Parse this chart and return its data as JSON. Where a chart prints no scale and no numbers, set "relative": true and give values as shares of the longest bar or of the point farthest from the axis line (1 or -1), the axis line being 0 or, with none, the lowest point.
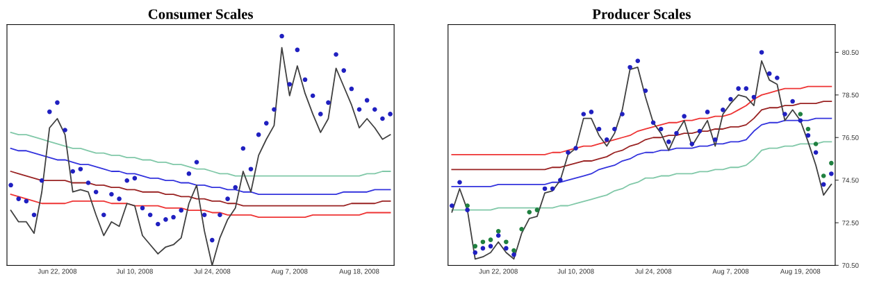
{
  "chart_data": [
    {
      "type": "line",
      "title": "Consumer Scales",
      "relative": true,
      "grid": false,
      "legend": false,
      "categories": [
        null,
        null,
        null,
        null,
        null,
        null,
        "Jun 22, 2008",
        null,
        null,
        null,
        null,
        null,
        null,
        null,
        null,
        null,
        "Jul 10, 2008",
        null,
        null,
        null,
        null,
        null,
        null,
        null,
        null,
        null,
        "Jul 24, 2008",
        null,
        null,
        null,
        null,
        null,
        null,
        null,
        null,
        null,
        "Aug 7, 2008",
        null,
        null,
        null,
        null,
        null,
        null,
        null,
        null,
        "Aug 18, 2008",
        null,
        null,
        null,
        null
      ],
      "series": [
        {
          "color": "#80c8a8",
          "values": [
            0.58,
            0.57,
            0.57,
            0.56,
            0.55,
            0.54,
            0.53,
            0.52,
            0.51,
            0.51,
            0.5,
            0.49,
            0.49,
            0.48,
            0.48,
            0.47,
            0.47,
            0.46,
            0.46,
            0.45,
            0.45,
            0.44,
            0.44,
            0.43,
            0.42,
            0.42,
            0.41,
            0.4,
            0.4,
            0.39,
            0.39,
            0.39,
            0.39,
            0.39,
            0.39,
            0.39,
            0.39,
            0.39,
            0.39,
            0.39,
            0.39,
            0.39,
            0.39,
            0.39,
            0.39,
            0.39,
            0.4,
            0.4,
            0.41,
            0.41
          ]
        },
        {
          "color": "#3333dd",
          "values": [
            0.51,
            0.5,
            0.5,
            0.49,
            0.48,
            0.47,
            0.46,
            0.46,
            0.45,
            0.44,
            0.44,
            0.43,
            0.42,
            0.41,
            0.41,
            0.4,
            0.4,
            0.39,
            0.38,
            0.38,
            0.37,
            0.37,
            0.36,
            0.36,
            0.35,
            0.35,
            0.34,
            0.34,
            0.33,
            0.33,
            0.32,
            0.32,
            0.31,
            0.31,
            0.31,
            0.31,
            0.31,
            0.31,
            0.31,
            0.31,
            0.31,
            0.31,
            0.31,
            0.32,
            0.32,
            0.32,
            0.32,
            0.33,
            0.33,
            0.33
          ]
        },
        {
          "color": "#992222",
          "values": [
            0.41,
            0.4,
            0.39,
            0.38,
            0.37,
            0.37,
            0.37,
            0.37,
            0.36,
            0.36,
            0.36,
            0.35,
            0.35,
            0.34,
            0.34,
            0.33,
            0.33,
            0.32,
            0.32,
            0.32,
            0.31,
            0.31,
            0.3,
            0.3,
            0.29,
            0.29,
            0.28,
            0.28,
            0.27,
            0.27,
            0.26,
            0.26,
            0.26,
            0.26,
            0.26,
            0.26,
            0.26,
            0.26,
            0.26,
            0.26,
            0.26,
            0.26,
            0.26,
            0.26,
            0.27,
            0.27,
            0.27,
            0.27,
            0.28,
            0.28
          ]
        },
        {
          "color": "#ee3333",
          "values": [
            0.31,
            0.3,
            0.29,
            0.28,
            0.27,
            0.27,
            0.27,
            0.27,
            0.28,
            0.28,
            0.28,
            0.28,
            0.28,
            0.27,
            0.27,
            0.27,
            0.26,
            0.26,
            0.26,
            0.26,
            0.25,
            0.25,
            0.25,
            0.24,
            0.24,
            0.24,
            0.23,
            0.23,
            0.22,
            0.22,
            0.22,
            0.22,
            0.21,
            0.21,
            0.21,
            0.21,
            0.21,
            0.21,
            0.21,
            0.22,
            0.22,
            0.22,
            0.22,
            0.22,
            0.22,
            0.22,
            0.23,
            0.23,
            0.23,
            0.23
          ]
        },
        {
          "color": "#404040",
          "values": [
            0.24,
            0.19,
            0.19,
            0.14,
            0.32,
            0.6,
            0.64,
            0.57,
            0.32,
            0.33,
            0.32,
            0.22,
            0.13,
            0.19,
            0.17,
            0.27,
            0.26,
            0.13,
            0.09,
            0.05,
            0.08,
            0.09,
            0.12,
            0.27,
            0.35,
            0.15,
            0.0,
            0.12,
            0.2,
            0.25,
            0.41,
            0.32,
            0.48,
            0.55,
            0.61,
            0.95,
            0.74,
            0.87,
            0.75,
            0.66,
            0.58,
            0.64,
            0.86,
            0.78,
            0.7,
            0.6,
            0.64,
            0.6,
            0.55,
            0.57
          ]
        },
        {
          "type": "scatter",
          "color": "#2020c0",
          "values": [
            0.35,
            0.29,
            0.28,
            0.22,
            0.37,
            0.67,
            0.71,
            0.59,
            0.41,
            0.42,
            0.36,
            0.32,
            0.22,
            0.31,
            0.29,
            0.37,
            0.38,
            0.25,
            0.22,
            0.18,
            0.2,
            0.21,
            0.24,
            0.4,
            0.45,
            0.22,
            0.11,
            0.22,
            0.29,
            0.34,
            0.51,
            0.42,
            0.57,
            0.62,
            0.68,
            1.0,
            0.79,
            0.94,
            0.81,
            0.74,
            0.66,
            0.71,
            0.92,
            0.85,
            0.77,
            0.68,
            0.72,
            0.68,
            0.64,
            0.66
          ]
        }
      ]
    },
    {
      "type": "line",
      "title": "Producer Scales",
      "grid": false,
      "legend": false,
      "ylim": [
        70.5,
        81.8
      ],
      "yticks": [
        {
          "value": 70.5,
          "label": "70.50"
        },
        {
          "value": 72.5,
          "label": "72.50"
        },
        {
          "value": 74.5,
          "label": "74.50"
        },
        {
          "value": 76.5,
          "label": "76.50"
        },
        {
          "value": 78.5,
          "label": "78.50"
        },
        {
          "value": 80.5,
          "label": "80.50"
        }
      ],
      "categories": [
        null,
        null,
        null,
        null,
        null,
        null,
        "Jun 22, 2008",
        null,
        null,
        null,
        null,
        null,
        null,
        null,
        null,
        null,
        "Jul 10, 2008",
        null,
        null,
        null,
        null,
        null,
        null,
        null,
        null,
        null,
        "Jul 24, 2008",
        null,
        null,
        null,
        null,
        null,
        null,
        null,
        null,
        null,
        "Aug 7, 2008",
        null,
        null,
        null,
        null,
        null,
        null,
        null,
        null,
        "Aug 19, 2008",
        null,
        null,
        null,
        null
      ],
      "series": [
        {
          "color": "#80c8a8",
          "values": [
            73.1,
            73.1,
            73.1,
            73.1,
            73.1,
            73.1,
            73.2,
            73.2,
            73.2,
            73.2,
            73.2,
            73.2,
            73.2,
            73.2,
            73.3,
            73.3,
            73.4,
            73.5,
            73.6,
            73.7,
            73.8,
            74.0,
            74.1,
            74.3,
            74.4,
            74.6,
            74.6,
            74.7,
            74.7,
            74.8,
            74.8,
            74.8,
            74.9,
            74.9,
            75.0,
            75.0,
            75.1,
            75.1,
            75.2,
            75.5,
            75.9,
            76.0,
            76.0,
            76.1,
            76.1,
            76.2,
            76.2,
            76.2,
            76.3,
            76.3
          ]
        },
        {
          "color": "#3333dd",
          "values": [
            74.2,
            74.2,
            74.2,
            74.2,
            74.2,
            74.2,
            74.3,
            74.3,
            74.3,
            74.3,
            74.3,
            74.3,
            74.3,
            74.4,
            74.4,
            74.5,
            74.6,
            74.7,
            74.8,
            75.0,
            75.1,
            75.2,
            75.4,
            75.5,
            75.7,
            75.8,
            75.8,
            75.9,
            75.9,
            76.0,
            76.0,
            76.0,
            76.1,
            76.1,
            76.2,
            76.2,
            76.3,
            76.3,
            76.4,
            76.8,
            77.1,
            77.2,
            77.2,
            77.3,
            77.3,
            77.3,
            77.3,
            77.4,
            77.4,
            77.4
          ]
        },
        {
          "color": "#992222",
          "values": [
            75.0,
            75.0,
            75.0,
            75.0,
            75.0,
            75.0,
            75.0,
            75.0,
            75.0,
            75.0,
            75.0,
            75.0,
            75.0,
            75.1,
            75.1,
            75.2,
            75.3,
            75.4,
            75.4,
            75.5,
            75.6,
            75.8,
            75.9,
            76.1,
            76.2,
            76.4,
            76.5,
            76.5,
            76.6,
            76.6,
            76.7,
            76.7,
            76.8,
            76.8,
            76.9,
            76.9,
            77.0,
            77.0,
            77.1,
            77.4,
            77.8,
            77.9,
            77.9,
            78.0,
            78.0,
            78.1,
            78.1,
            78.1,
            78.2,
            78.2
          ]
        },
        {
          "color": "#ee3333",
          "values": [
            75.7,
            75.7,
            75.7,
            75.7,
            75.7,
            75.7,
            75.7,
            75.7,
            75.7,
            75.7,
            75.7,
            75.7,
            75.7,
            75.8,
            75.8,
            75.9,
            76.0,
            76.1,
            76.1,
            76.2,
            76.3,
            76.4,
            76.5,
            76.6,
            76.8,
            76.9,
            77.0,
            77.1,
            77.2,
            77.2,
            77.3,
            77.3,
            77.4,
            77.4,
            77.5,
            77.5,
            77.6,
            77.8,
            78.0,
            78.3,
            78.5,
            78.6,
            78.7,
            78.8,
            78.8,
            78.8,
            78.9,
            78.9,
            78.9,
            78.9
          ]
        },
        {
          "color": "#404040",
          "values": [
            73.0,
            74.1,
            73.1,
            70.8,
            70.9,
            71.1,
            71.6,
            71.1,
            70.8,
            72.0,
            72.7,
            72.8,
            73.9,
            74.0,
            74.5,
            75.7,
            76.0,
            77.4,
            77.4,
            76.6,
            76.1,
            76.7,
            77.8,
            79.7,
            79.8,
            78.4,
            77.2,
            76.7,
            75.9,
            76.7,
            77.3,
            76.1,
            76.7,
            77.3,
            76.1,
            77.6,
            78.1,
            78.5,
            78.4,
            78.0,
            80.1,
            79.2,
            79.0,
            77.3,
            77.8,
            77.3,
            76.3,
            75.2,
            73.8,
            74.3
          ]
        },
        {
          "type": "scatter",
          "color": "#208040",
          "values": [
            null,
            null,
            73.3,
            71.4,
            71.6,
            71.7,
            72.1,
            71.6,
            71.2,
            72.2,
            73.0,
            73.1,
            null,
            null,
            null,
            null,
            null,
            null,
            null,
            null,
            null,
            null,
            null,
            null,
            null,
            null,
            null,
            null,
            null,
            null,
            null,
            null,
            null,
            null,
            null,
            null,
            null,
            null,
            null,
            null,
            null,
            null,
            null,
            null,
            null,
            77.6,
            76.9,
            76.2,
            74.7,
            75.3
          ]
        },
        {
          "type": "scatter",
          "color": "#2020c0",
          "values": [
            73.3,
            74.4,
            73.1,
            71.1,
            71.3,
            71.4,
            71.9,
            71.3,
            71.0,
            null,
            null,
            null,
            74.1,
            74.1,
            74.5,
            75.8,
            76.0,
            77.6,
            77.7,
            76.9,
            76.4,
            76.9,
            77.6,
            79.8,
            80.1,
            78.7,
            77.2,
            76.9,
            76.3,
            76.7,
            77.5,
            76.2,
            76.8,
            77.7,
            76.4,
            77.8,
            78.3,
            78.8,
            78.8,
            78.4,
            80.5,
            79.5,
            79.3,
            77.6,
            78.2,
            77.3,
            76.6,
            75.8,
            74.3,
            74.8
          ]
        }
      ]
    }
  ]
}
